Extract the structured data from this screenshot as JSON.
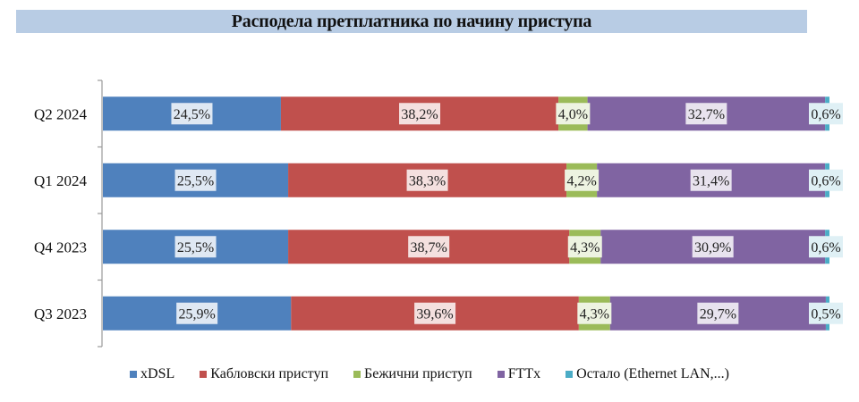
{
  "chart_data": {
    "type": "bar",
    "orientation": "horizontal",
    "stacked": true,
    "title": "Расподела претплатника по начину приступа",
    "categories": [
      "Q2 2024",
      "Q1 2024",
      "Q4 2023",
      "Q3 2023"
    ],
    "series": [
      {
        "name": "xDSL",
        "color": "#4f81bd",
        "values": [
          24.5,
          25.5,
          25.5,
          25.9
        ],
        "labels": [
          "24,5%",
          "25,5%",
          "25,5%",
          "25,9%"
        ]
      },
      {
        "name": "Кабловски приступ",
        "color": "#c0504d",
        "values": [
          38.2,
          38.3,
          38.7,
          39.6
        ],
        "labels": [
          "38,2%",
          "38,3%",
          "38,7%",
          "39,6%"
        ]
      },
      {
        "name": "Бежични приступ",
        "color": "#9bbb59",
        "values": [
          4.0,
          4.2,
          4.3,
          4.3
        ],
        "labels": [
          "4,0%",
          "4,2%",
          "4,3%",
          "4,3%"
        ]
      },
      {
        "name": "FTTx",
        "color": "#8064a2",
        "values": [
          32.7,
          31.4,
          30.9,
          29.7
        ],
        "labels": [
          "32,7%",
          "31,4%",
          "30,9%",
          "29,7%"
        ]
      },
      {
        "name": "Остало (Ethernet LAN,...)",
        "color": "#4bacc6",
        "values": [
          0.6,
          0.6,
          0.6,
          0.5
        ],
        "labels": [
          "0,6%",
          "0,6%",
          "0,6%",
          "0,5%"
        ]
      }
    ],
    "xlim": [
      0,
      100
    ],
    "legend": "bottom",
    "grid": false
  }
}
